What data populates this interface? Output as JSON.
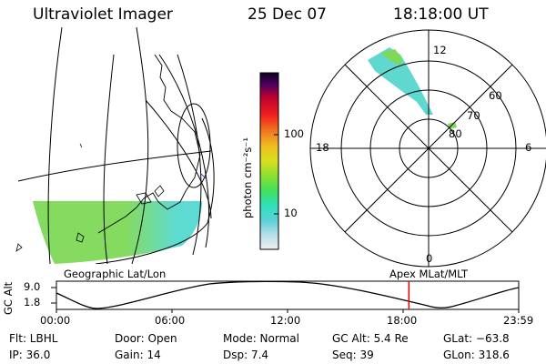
{
  "header": {
    "title": "Ultraviolet Imager",
    "date": "25 Dec 07",
    "time": "18:18:00 UT"
  },
  "colorbar": {
    "unit_label": "photon cm⁻²s⁻¹",
    "ticks": [
      "100",
      "10"
    ],
    "colors": [
      "#f0f0f0",
      "#b8e0e8",
      "#60d0d8",
      "#30e0c0",
      "#40e060",
      "#90e030",
      "#d8e020",
      "#f0c020",
      "#f08020",
      "#f02020",
      "#c00030",
      "#500060",
      "#100020"
    ]
  },
  "map_panel": {
    "caption": "Geographic Lat/Lon",
    "fill_colors": {
      "aurora_green": "#7ed957",
      "aurora_cyan": "#56d9cf"
    }
  },
  "polar_panel": {
    "caption": "Apex  MLat/MLT",
    "mlt_labels": {
      "top": "12",
      "bottom": "0",
      "left": "18",
      "right": "6"
    },
    "lat_labels": [
      "60",
      "70",
      "80"
    ]
  },
  "timeline": {
    "ylabel": "GC Alt",
    "y_ticks": [
      "9.0",
      "1.8"
    ],
    "x_ticks": [
      "00:00",
      "06:00",
      "12:00",
      "18:00",
      "23:59"
    ],
    "marker_color": "#e00000",
    "marker_time_hours": 18.3
  },
  "info": {
    "flt": "Flt: LBHL",
    "ip": "IP: 36.0",
    "door": "Door: Open",
    "gain": "Gain: 14",
    "mode": "Mode: Normal",
    "dsp": "Dsp:      7.4",
    "gc_alt": "GC Alt: 5.4 Re",
    "seq": "Seq: 39",
    "glat": "GLat: −63.8",
    "glon": "GLon: 318.6"
  }
}
